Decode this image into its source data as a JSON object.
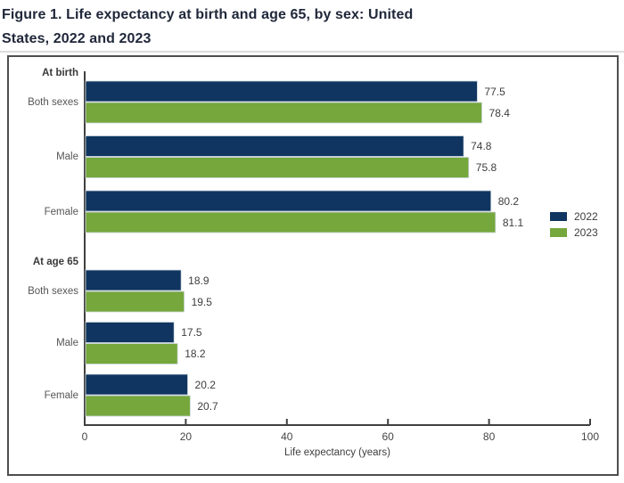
{
  "figure": {
    "title_line1": "Figure 1. Life expectancy at birth and age 65, by sex: United",
    "title_line2": "States, 2022 and 2023"
  },
  "chart_data": {
    "type": "bar",
    "orientation": "horizontal",
    "title": "Figure 1. Life expectancy at birth and age 65, by sex: United States, 2022 and 2023",
    "xlabel": "Life expectancy (years)",
    "xlim": [
      0,
      100
    ],
    "xticks": [
      0,
      20,
      40,
      60,
      80,
      100
    ],
    "grid": false,
    "legend_position": "right-middle",
    "legend": [
      "2022",
      "2023"
    ],
    "series_colors": {
      "2022": "#0f3560",
      "2023": "#75a73c"
    },
    "groups": [
      {
        "label": "At birth",
        "categories": [
          "Both sexes",
          "Male",
          "Female"
        ],
        "series": [
          {
            "name": "2022",
            "values": [
              77.5,
              74.8,
              80.2
            ]
          },
          {
            "name": "2023",
            "values": [
              78.4,
              75.8,
              81.1
            ]
          }
        ]
      },
      {
        "label": "At age 65",
        "categories": [
          "Both sexes",
          "Male",
          "Female"
        ],
        "series": [
          {
            "name": "2022",
            "values": [
              18.9,
              17.5,
              20.2
            ]
          },
          {
            "name": "2023",
            "values": [
              19.5,
              18.2,
              20.7
            ]
          }
        ]
      }
    ]
  }
}
